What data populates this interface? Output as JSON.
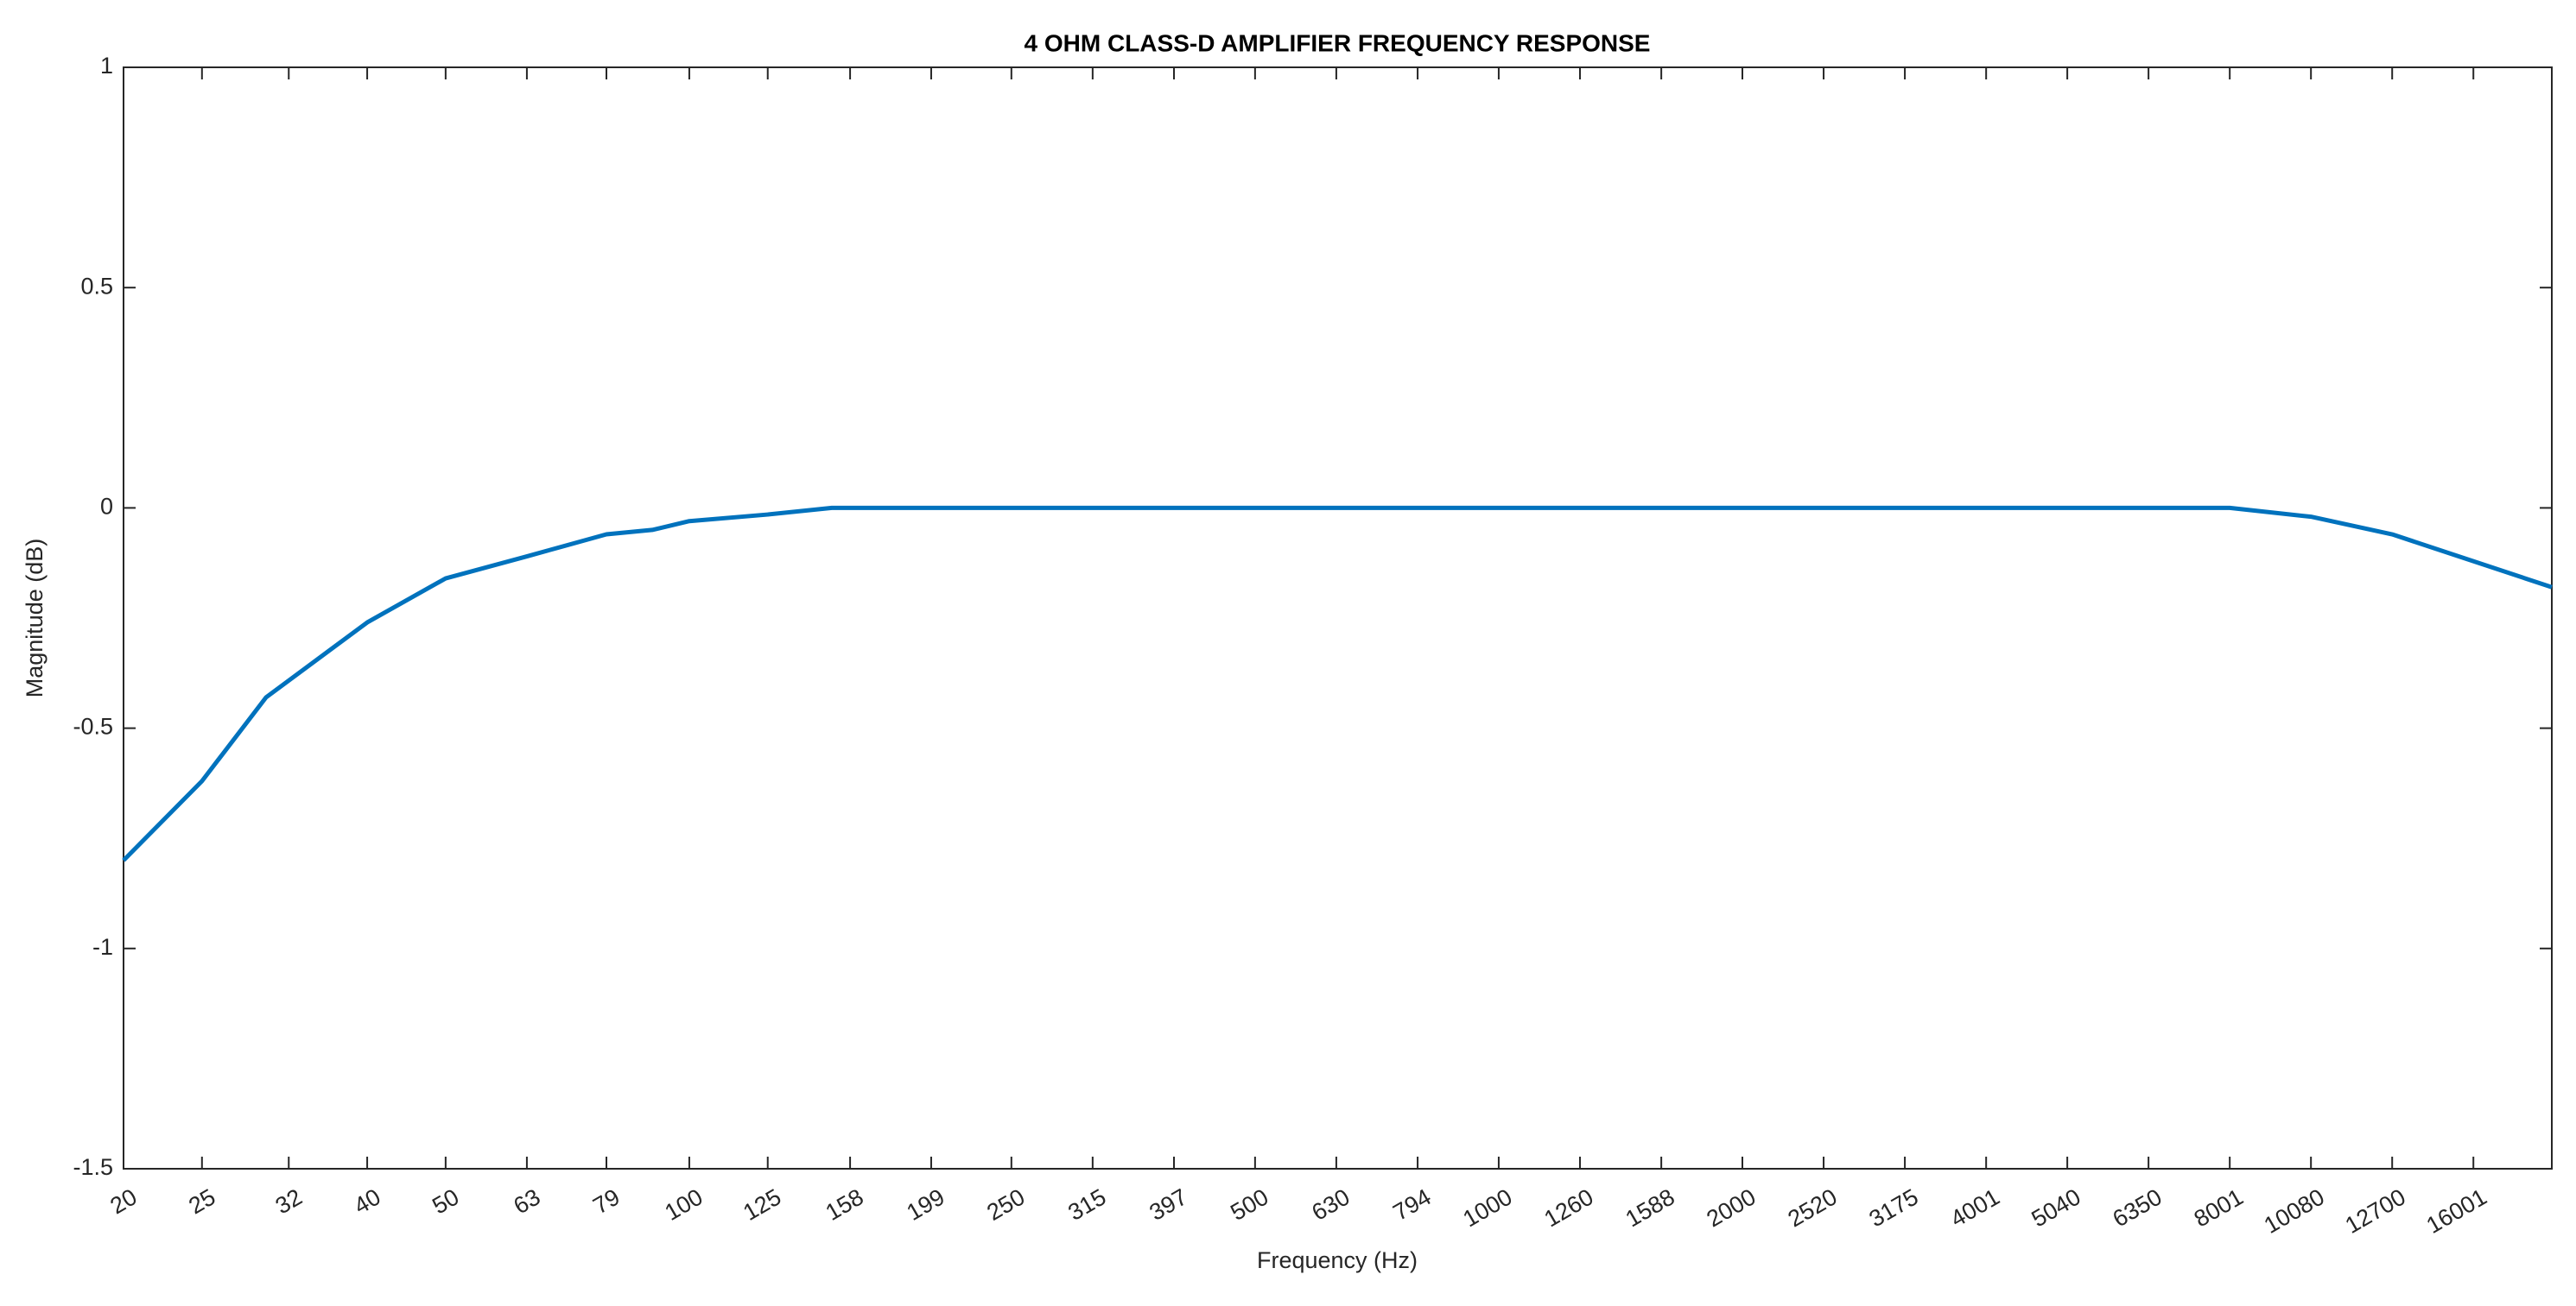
{
  "chart_data": {
    "type": "line",
    "title": "4 OHM CLASS-D AMPLIFIER FREQUENCY RESPONSE",
    "x_label": "Frequency (Hz)",
    "y_label": "Magnitude (dB)",
    "x": [
      20,
      25,
      30,
      40,
      50,
      63,
      79,
      90,
      100,
      125,
      150,
      8001,
      10080,
      12700,
      20000
    ],
    "series": [
      {
        "name": "Magnitude",
        "color": "#0072bd",
        "values": [
          -0.8,
          -0.62,
          -0.43,
          -0.26,
          -0.16,
          -0.11,
          -0.06,
          -0.05,
          -0.03,
          -0.015,
          0,
          0,
          -0.02,
          -0.06,
          -0.18
        ]
      }
    ],
    "xscale": "log",
    "xlim": [
      20,
      20000
    ],
    "xticks": [
      20,
      25,
      32,
      40,
      50,
      63,
      79,
      100,
      125,
      158,
      199,
      250,
      315,
      397,
      500,
      630,
      794,
      1000,
      1260,
      1588,
      2000,
      2520,
      3175,
      4001,
      5040,
      6350,
      8001,
      10080,
      12700,
      16001
    ],
    "ylim": [
      -1.5,
      1
    ],
    "yticks": [
      -1.5,
      -1,
      -0.5,
      0,
      0.5,
      1
    ],
    "grid": false
  }
}
